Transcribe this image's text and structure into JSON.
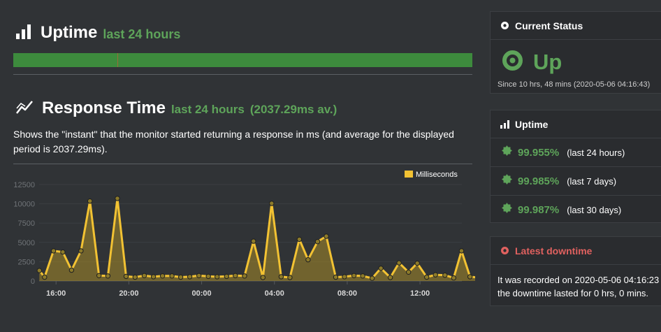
{
  "uptime_section": {
    "icon": "bar-chart-icon",
    "title": "Uptime",
    "subtitle": "last 24 hours"
  },
  "response_section": {
    "icon": "line-chart-icon",
    "title": "Response Time",
    "subtitle": "last 24 hours",
    "average": "(2037.29ms av.)",
    "description": "Shows the \"instant\" that the monitor started returning a response in ms (and average for the displayed period is 2037.29ms)."
  },
  "colors": {
    "up_green": "#5ea45a",
    "bar_green": "#3d8b3d",
    "series_yellow": "#f2c233",
    "downtime_red": "#e0615f"
  },
  "chart_data": {
    "type": "area",
    "legend": {
      "label": "Milliseconds",
      "position": "top-right"
    },
    "y_ticks": [
      "0",
      "2500",
      "5000",
      "7500",
      "10000",
      "12500"
    ],
    "ylim": [
      0,
      12500
    ],
    "x_tick_labels": [
      "16:00",
      "20:00",
      "00:00",
      "04:00",
      "08:00",
      "12:00"
    ],
    "x_tick_hours": [
      16,
      20,
      24,
      28,
      32,
      36
    ],
    "x_hours_range": [
      15.07,
      38.3
    ],
    "grid": true,
    "series": [
      {
        "name": "Milliseconds",
        "points": [
          [
            15.08,
            1350
          ],
          [
            15.37,
            500
          ],
          [
            15.86,
            3900
          ],
          [
            16.37,
            3750
          ],
          [
            16.85,
            1400
          ],
          [
            17.37,
            3900
          ],
          [
            17.86,
            10350
          ],
          [
            18.36,
            700
          ],
          [
            18.85,
            650
          ],
          [
            19.37,
            10700
          ],
          [
            19.85,
            600
          ],
          [
            20.34,
            500
          ],
          [
            20.85,
            700
          ],
          [
            21.35,
            550
          ],
          [
            21.85,
            650
          ],
          [
            22.37,
            650
          ],
          [
            22.85,
            500
          ],
          [
            23.35,
            550
          ],
          [
            23.85,
            700
          ],
          [
            24.37,
            600
          ],
          [
            24.85,
            550
          ],
          [
            25.37,
            600
          ],
          [
            25.85,
            700
          ],
          [
            26.36,
            650
          ],
          [
            26.85,
            5150
          ],
          [
            27.37,
            450
          ],
          [
            27.85,
            10050
          ],
          [
            28.37,
            550
          ],
          [
            28.85,
            450
          ],
          [
            29.37,
            5400
          ],
          [
            29.85,
            2750
          ],
          [
            30.37,
            5100
          ],
          [
            30.85,
            5800
          ],
          [
            31.37,
            500
          ],
          [
            31.85,
            550
          ],
          [
            32.37,
            700
          ],
          [
            32.85,
            650
          ],
          [
            33.37,
            350
          ],
          [
            33.85,
            1650
          ],
          [
            34.37,
            450
          ],
          [
            34.85,
            2350
          ],
          [
            35.37,
            1150
          ],
          [
            35.85,
            2300
          ],
          [
            36.37,
            500
          ],
          [
            36.85,
            800
          ],
          [
            37.37,
            750
          ],
          [
            37.85,
            400
          ],
          [
            38.28,
            3900
          ],
          [
            38.75,
            550
          ],
          [
            39.2,
            450
          ]
        ]
      }
    ]
  },
  "current_status": {
    "header_icon": "dot-circle-icon",
    "header": "Current Status",
    "status_icon": "status-up-icon",
    "status": "Up",
    "since": "Since 10 hrs, 48 mins (2020-05-06 04:16:43)"
  },
  "uptime_panel": {
    "header_icon": "bar-chart-icon",
    "header": "Uptime",
    "rows": [
      {
        "icon": "badge-icon",
        "value": "99.955%",
        "period": "(last 24 hours)"
      },
      {
        "icon": "badge-icon",
        "value": "99.985%",
        "period": "(last 7 days)"
      },
      {
        "icon": "badge-icon",
        "value": "99.987%",
        "period": "(last 30 days)"
      }
    ]
  },
  "latest_downtime": {
    "header_icon": "dot-circle-icon",
    "header": "Latest downtime",
    "line1": "It was recorded on 2020-05-06 04:16:23",
    "line2": "the downtime lasted for 0 hrs, 0 mins."
  }
}
